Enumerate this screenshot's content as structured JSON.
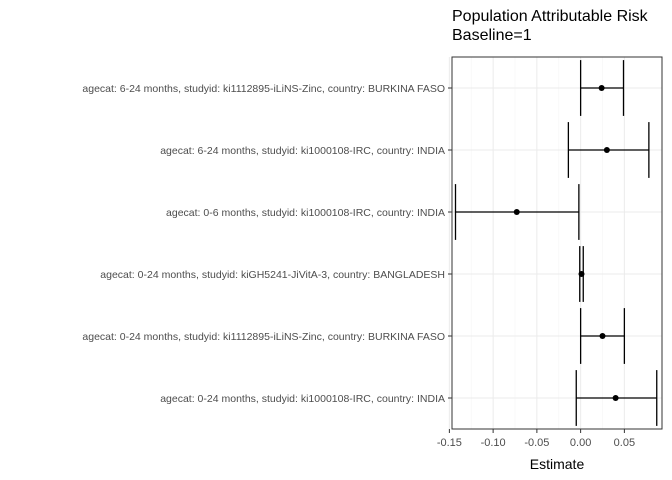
{
  "chart_data": {
    "type": "forest",
    "title": "Population Attributable Risk",
    "subtitle": "Baseline=1",
    "xlabel": "Estimate",
    "ylabel": "",
    "xlim": [
      -0.147,
      0.093
    ],
    "xticks": [
      -0.15,
      -0.1,
      -0.05,
      0.0,
      0.05
    ],
    "xtick_labels": [
      "-0.15",
      "-0.10",
      "-0.05",
      "0.00",
      "0.05"
    ],
    "grid": true,
    "categories": [
      "agecat: 6-24 months, studyid: ki1112895-iLiNS-Zinc, country: BURKINA FASO",
      "agecat: 6-24 months, studyid: ki1000108-IRC, country: INDIA",
      "agecat: 0-6 months, studyid: ki1000108-IRC, country: INDIA",
      "agecat: 0-24 months, studyid: kiGH5241-JiVitA-3, country: BANGLADESH",
      "agecat: 0-24 months, studyid: ki1112895-iLiNS-Zinc, country: BURKINA FASO",
      "agecat: 0-24 months, studyid: ki1000108-IRC, country: INDIA"
    ],
    "estimates": [
      0.024,
      0.03,
      -0.073,
      0.001,
      0.025,
      0.04
    ],
    "lower": [
      0.0,
      -0.014,
      -0.143,
      -0.001,
      0.0,
      -0.005
    ],
    "upper": [
      0.049,
      0.078,
      -0.002,
      0.003,
      0.05,
      0.087
    ],
    "colors": {
      "point": "#000000",
      "grid": "#ebebeb",
      "border": "#333333"
    }
  }
}
